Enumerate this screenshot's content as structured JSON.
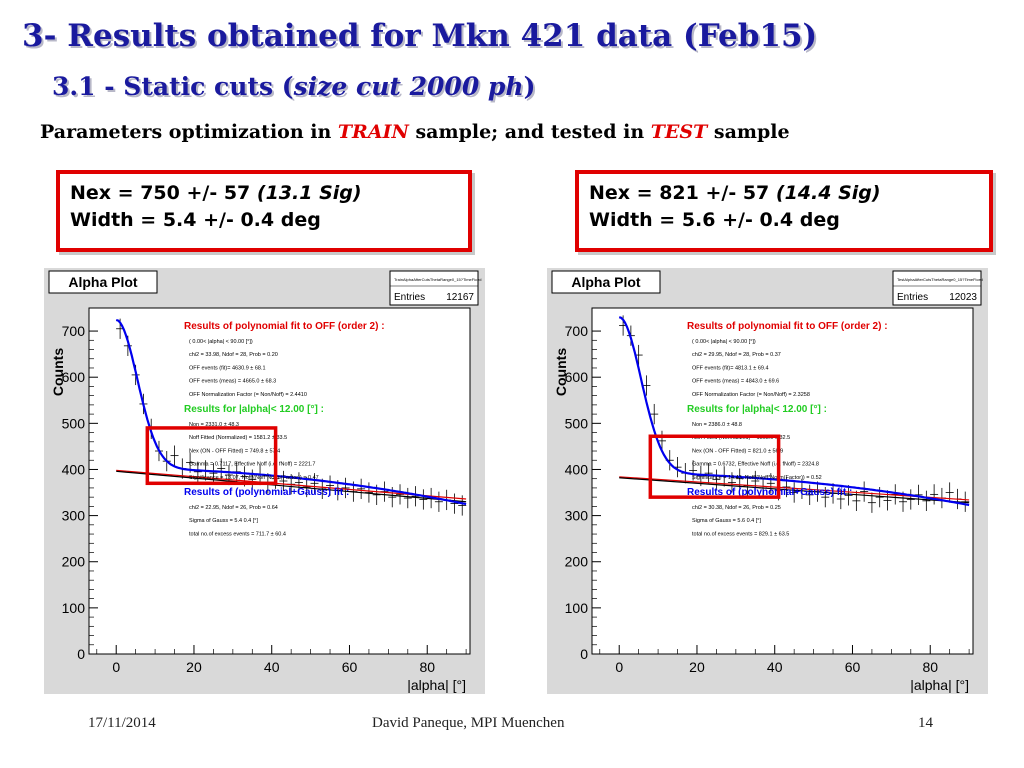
{
  "header": {
    "title": "3- Results obtained for Mkn 421 data (Feb15)",
    "subtitle_prefix": "3.1 - Static cuts (",
    "subtitle_italic": "size cut 2000 ph",
    "subtitle_suffix": ")",
    "description_part1": "Parameters optimization in ",
    "description_train": "TRAIN",
    "description_part2": " sample; and tested in ",
    "description_test": "TEST",
    "description_part3": " sample"
  },
  "colors": {
    "title": "#1a1a9e",
    "accent_red": "#e00000",
    "fit_blue": "#0000ee",
    "fit_green": "#22cc22",
    "plot_bg": "#d9d9d9"
  },
  "results": [
    {
      "nex_line": "Nex = 750 +/-  57 ",
      "sig_line": "(13.1 Sig)",
      "width_line": "Width = 5.4 +/- 0.4 deg"
    },
    {
      "nex_line": "Nex = 821 +/-  57 ",
      "sig_line": "(14.4 Sig)",
      "width_line": "Width = 5.6 +/- 0.4 deg"
    }
  ],
  "chart_data": [
    {
      "type": "scatter",
      "title": "Alpha Plot",
      "histogram_name": "TrainAlphaAfterCutsThetaRange0_15?TimeFiced",
      "entries_label": "Entries",
      "entries_value": "12167",
      "xlabel": "|alpha|  [°]",
      "ylabel": "Counts",
      "xlim": [
        -7,
        91
      ],
      "ylim": [
        0,
        750
      ],
      "xticks": [
        "0",
        "20",
        "40",
        "60",
        "80"
      ],
      "yticks": [
        "0",
        "100",
        "200",
        "300",
        "400",
        "500",
        "600",
        "700"
      ],
      "points": [
        {
          "x": 1,
          "y": 705
        },
        {
          "x": 3,
          "y": 668
        },
        {
          "x": 5,
          "y": 605
        },
        {
          "x": 7,
          "y": 542
        },
        {
          "x": 9,
          "y": 488
        },
        {
          "x": 11,
          "y": 440
        },
        {
          "x": 13,
          "y": 418
        },
        {
          "x": 15,
          "y": 430
        },
        {
          "x": 17,
          "y": 402
        },
        {
          "x": 19,
          "y": 415
        },
        {
          "x": 21,
          "y": 395
        },
        {
          "x": 23,
          "y": 398
        },
        {
          "x": 25,
          "y": 392
        },
        {
          "x": 27,
          "y": 402
        },
        {
          "x": 29,
          "y": 388
        },
        {
          "x": 31,
          "y": 395
        },
        {
          "x": 33,
          "y": 385
        },
        {
          "x": 35,
          "y": 378
        },
        {
          "x": 37,
          "y": 388
        },
        {
          "x": 39,
          "y": 370
        },
        {
          "x": 41,
          "y": 380
        },
        {
          "x": 43,
          "y": 375
        },
        {
          "x": 45,
          "y": 368
        },
        {
          "x": 47,
          "y": 372
        },
        {
          "x": 49,
          "y": 362
        },
        {
          "x": 51,
          "y": 370
        },
        {
          "x": 53,
          "y": 358
        },
        {
          "x": 55,
          "y": 365
        },
        {
          "x": 57,
          "y": 355
        },
        {
          "x": 59,
          "y": 360
        },
        {
          "x": 61,
          "y": 352
        },
        {
          "x": 63,
          "y": 358
        },
        {
          "x": 65,
          "y": 350
        },
        {
          "x": 67,
          "y": 345
        },
        {
          "x": 69,
          "y": 352
        },
        {
          "x": 71,
          "y": 340
        },
        {
          "x": 73,
          "y": 346
        },
        {
          "x": 75,
          "y": 338
        },
        {
          "x": 77,
          "y": 342
        },
        {
          "x": 79,
          "y": 335
        },
        {
          "x": 81,
          "y": 338
        },
        {
          "x": 83,
          "y": 330
        },
        {
          "x": 85,
          "y": 334
        },
        {
          "x": 87,
          "y": 326
        },
        {
          "x": 89,
          "y": 322
        }
      ],
      "error_bar": 22,
      "fit": {
        "base": 402,
        "slope": -0.0008,
        "quad": -0.0095,
        "amp": 322,
        "sigma": 5.4
      },
      "off_line": {
        "x0": 0,
        "y0": 396,
        "x1": 90,
        "y1": 330
      },
      "highlight_box": {
        "x0": 8,
        "x1": 41,
        "y0": 370,
        "y1": 490
      },
      "stats": [
        {
          "text": "Results of polynomial fit to OFF (order  2) :",
          "style": "red"
        },
        {
          "text": "(  0.00< |alpha| < 90.00 [°])",
          "style": "small"
        },
        {
          "text": "chi2 =    33.98,  Ndof =   28,  Prob =   0.20",
          "style": "small"
        },
        {
          "text": "OFF events (fit)=   4630.9 ±    68.1",
          "style": "small"
        },
        {
          "text": "OFF events (meas) =   4665.0 ±    68.3",
          "style": "small"
        },
        {
          "text": "OFF Normalization Factor (= Non/Noff) = 2.4410",
          "style": "small"
        },
        {
          "text": "Results for |alpha|<  12.00 [°] :",
          "style": "green"
        },
        {
          "text": "Non =   2331.0 ±    48.3",
          "style": "small"
        },
        {
          "text": "Noff Fitted (Normalized) =   1581.2 ±    33.5",
          "style": "small"
        },
        {
          "text": "Nex (ON - OFF Fitted) =    749.8 ±    57.4",
          "style": "small"
        },
        {
          "text": "Gamma = 0.7117,  Effective Noff (i.e. fNoff) = 2221.7",
          "style": "small"
        },
        {
          "text": "Significance = 13.07,  Noff/(Noff*Norm(Factor)) = 0.47",
          "style": "small"
        },
        {
          "text": "Results of (polynomial+Gauss) fit :",
          "style": "blue"
        },
        {
          "text": "chi2 =    22.95,  Ndof =   26,  Prob =   0.64",
          "style": "small"
        },
        {
          "text": "Sigma of Gauss    =     5.4    0.4  [°]",
          "style": "small"
        },
        {
          "text": "total no.of excess events =    711.7 ±    60.4",
          "style": "small"
        }
      ]
    },
    {
      "type": "scatter",
      "title": "Alpha Plot",
      "histogram_name": "TestAlphaAfterCutsThetaRange0_15?TimeFiced",
      "entries_label": "Entries",
      "entries_value": "12023",
      "xlabel": "|alpha|  [°]",
      "ylabel": "Counts",
      "xlim": [
        -7,
        91
      ],
      "ylim": [
        0,
        750
      ],
      "xticks": [
        "0",
        "20",
        "40",
        "60",
        "80"
      ],
      "yticks": [
        "0",
        "100",
        "200",
        "300",
        "400",
        "500",
        "600",
        "700"
      ],
      "points": [
        {
          "x": 1,
          "y": 712
        },
        {
          "x": 3,
          "y": 690
        },
        {
          "x": 5,
          "y": 648
        },
        {
          "x": 7,
          "y": 582
        },
        {
          "x": 9,
          "y": 520
        },
        {
          "x": 11,
          "y": 462
        },
        {
          "x": 13,
          "y": 420
        },
        {
          "x": 15,
          "y": 405
        },
        {
          "x": 17,
          "y": 392
        },
        {
          "x": 19,
          "y": 398
        },
        {
          "x": 21,
          "y": 386
        },
        {
          "x": 23,
          "y": 392
        },
        {
          "x": 25,
          "y": 378
        },
        {
          "x": 27,
          "y": 385
        },
        {
          "x": 29,
          "y": 372
        },
        {
          "x": 31,
          "y": 380
        },
        {
          "x": 33,
          "y": 365
        },
        {
          "x": 35,
          "y": 375
        },
        {
          "x": 37,
          "y": 360
        },
        {
          "x": 39,
          "y": 370
        },
        {
          "x": 41,
          "y": 355
        },
        {
          "x": 43,
          "y": 362
        },
        {
          "x": 45,
          "y": 350
        },
        {
          "x": 47,
          "y": 358
        },
        {
          "x": 49,
          "y": 345
        },
        {
          "x": 51,
          "y": 352
        },
        {
          "x": 53,
          "y": 340
        },
        {
          "x": 55,
          "y": 348
        },
        {
          "x": 57,
          "y": 336
        },
        {
          "x": 59,
          "y": 344
        },
        {
          "x": 61,
          "y": 332
        },
        {
          "x": 63,
          "y": 352
        },
        {
          "x": 65,
          "y": 328
        },
        {
          "x": 67,
          "y": 340
        },
        {
          "x": 69,
          "y": 333
        },
        {
          "x": 71,
          "y": 346
        },
        {
          "x": 73,
          "y": 330
        },
        {
          "x": 75,
          "y": 335
        },
        {
          "x": 77,
          "y": 345
        },
        {
          "x": 79,
          "y": 332
        },
        {
          "x": 81,
          "y": 346
        },
        {
          "x": 83,
          "y": 338
        },
        {
          "x": 85,
          "y": 350
        },
        {
          "x": 87,
          "y": 336
        },
        {
          "x": 89,
          "y": 330
        }
      ],
      "error_bar": 22,
      "fit": {
        "base": 392,
        "slope": -0.0008,
        "quad": -0.0085,
        "amp": 338,
        "sigma": 5.6
      },
      "off_line": {
        "x0": 0,
        "y0": 382,
        "x1": 90,
        "y1": 328
      },
      "highlight_box": {
        "x0": 8,
        "x1": 41,
        "y0": 340,
        "y1": 472
      },
      "stats": [
        {
          "text": "Results of polynomial fit to OFF (order  2) :",
          "style": "red"
        },
        {
          "text": "(  0.00< |alpha| < 90.00 [°])",
          "style": "small"
        },
        {
          "text": "chi2 =    29.95,  Ndof =   28,  Prob =   0.37",
          "style": "small"
        },
        {
          "text": "OFF events (fit)=   4813.1 ±    69.4",
          "style": "small"
        },
        {
          "text": "OFF events (meas) =   4843.0 ±    69.6",
          "style": "small"
        },
        {
          "text": "OFF Normalization Factor (= Non/Noff) = 2.3258",
          "style": "small"
        },
        {
          "text": "Results for |alpha|<  12.00 [°] :",
          "style": "green"
        },
        {
          "text": "Non =   2386.0 ±    48.8",
          "style": "small"
        },
        {
          "text": "Noff Fitted (Normalized) =   1565.0 ±    32.5",
          "style": "small"
        },
        {
          "text": "Nex (ON - OFF Fitted) =    821.0 ±    56.9",
          "style": "small"
        },
        {
          "text": "Gamma = 0.6732,  Effective Noff (i.e. fNoff) = 2324.8",
          "style": "small"
        },
        {
          "text": "Significance = 14.43,  Noff/(Noff*Norm(Factor)) = 0.52",
          "style": "small"
        },
        {
          "text": "Results of (polynomial+Gauss) fit :",
          "style": "blue"
        },
        {
          "text": "chi2 =    30.38,  Ndof =   26,  Prob =   0.25",
          "style": "small"
        },
        {
          "text": "Sigma of Gauss    =     5.6    0.4  [°]",
          "style": "small"
        },
        {
          "text": "total no.of excess events =    829.1 ±    63.5",
          "style": "small"
        }
      ]
    }
  ],
  "footer": {
    "date": "17/11/2014",
    "author": "David Paneque, MPI Muenchen",
    "page": "14"
  }
}
